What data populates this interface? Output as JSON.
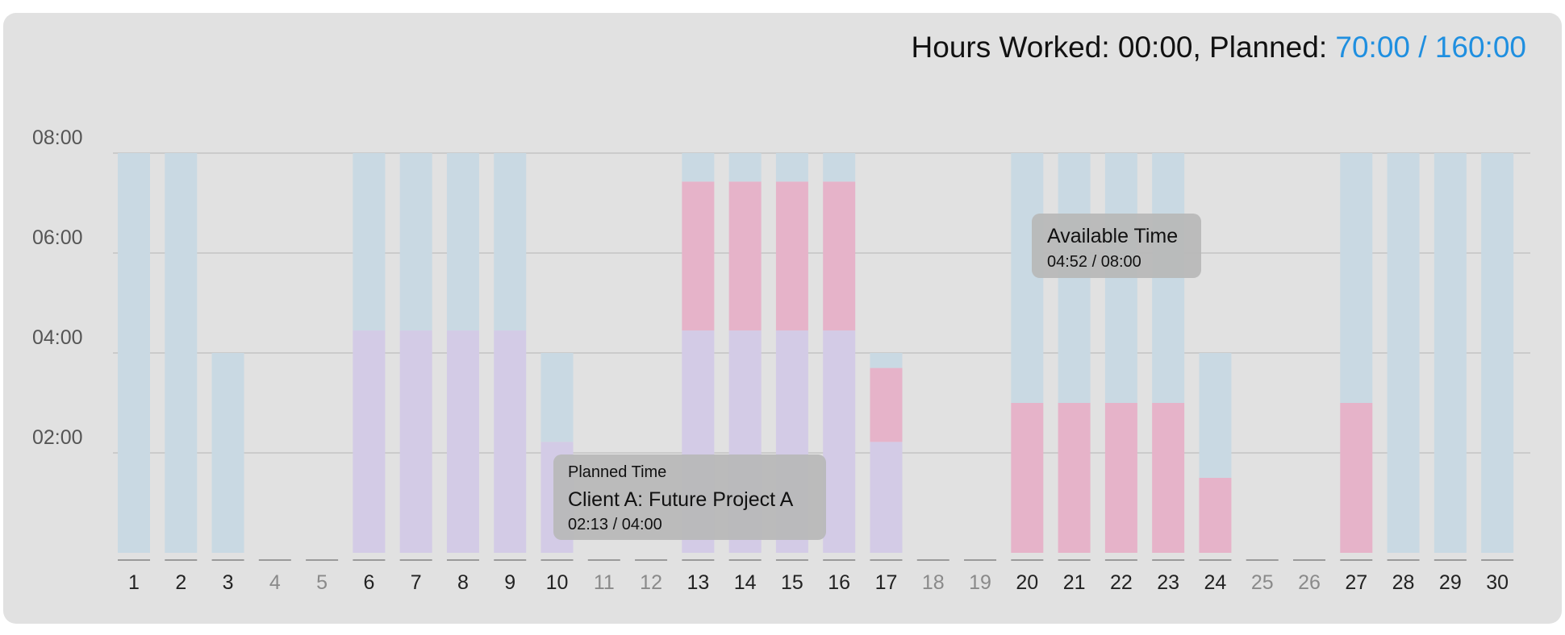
{
  "summary": {
    "worked_label": "Hours Worked: 00:00, Planned: ",
    "planned_value": "70:00 / 160:00"
  },
  "colors": {
    "available": "#c9d9e3",
    "planned": "#d3cbe6",
    "overlap": "#e6b3c9",
    "accent": "#1f8fe0",
    "grid": "#c4c4c4"
  },
  "chart_data": {
    "type": "bar",
    "stacked": true,
    "y_unit": "hours",
    "ylim": [
      0,
      8
    ],
    "y_ticks": [
      {
        "value": 2,
        "label": "02:00"
      },
      {
        "value": 4,
        "label": "04:00"
      },
      {
        "value": 6,
        "label": "06:00"
      },
      {
        "value": 8,
        "label": "08:00"
      }
    ],
    "grid": true,
    "categories": [
      "1",
      "2",
      "3",
      "4",
      "5",
      "6",
      "7",
      "8",
      "9",
      "10",
      "11",
      "12",
      "13",
      "14",
      "15",
      "16",
      "17",
      "18",
      "19",
      "20",
      "21",
      "22",
      "23",
      "24",
      "25",
      "26",
      "27",
      "28",
      "29",
      "30"
    ],
    "weekend_days": [
      "4",
      "5",
      "11",
      "12",
      "18",
      "19",
      "25",
      "26"
    ],
    "series": [
      {
        "key": "planned",
        "values": [
          0,
          0,
          0,
          0,
          0,
          4.45,
          4.45,
          4.45,
          4.45,
          2.22,
          0,
          0,
          4.45,
          4.45,
          4.45,
          4.45,
          2.22,
          0,
          0,
          0,
          0,
          0,
          0,
          0,
          0,
          0,
          0,
          0,
          0,
          0
        ]
      },
      {
        "key": "overlap",
        "values": [
          0,
          0,
          0,
          0,
          0,
          0,
          0,
          0,
          0,
          0,
          0,
          0,
          2.98,
          2.98,
          2.98,
          2.98,
          1.48,
          0,
          0,
          3,
          3,
          3,
          3,
          1.5,
          0,
          0,
          3,
          0,
          0,
          0
        ]
      },
      {
        "key": "available",
        "values": [
          8,
          8,
          4,
          0,
          0,
          3.55,
          3.55,
          3.55,
          3.55,
          1.78,
          0,
          0,
          0.57,
          0.57,
          0.57,
          0.57,
          0.3,
          0,
          0,
          5,
          5,
          5,
          5,
          2.5,
          0,
          0,
          5,
          8,
          8,
          8
        ]
      }
    ],
    "tooltips": [
      {
        "title": "Available Time",
        "value": "04:52 / 08:00"
      },
      {
        "subtitle": "Planned Time",
        "title": "Client A: Future Project A",
        "value": "02:13 / 04:00"
      }
    ]
  }
}
